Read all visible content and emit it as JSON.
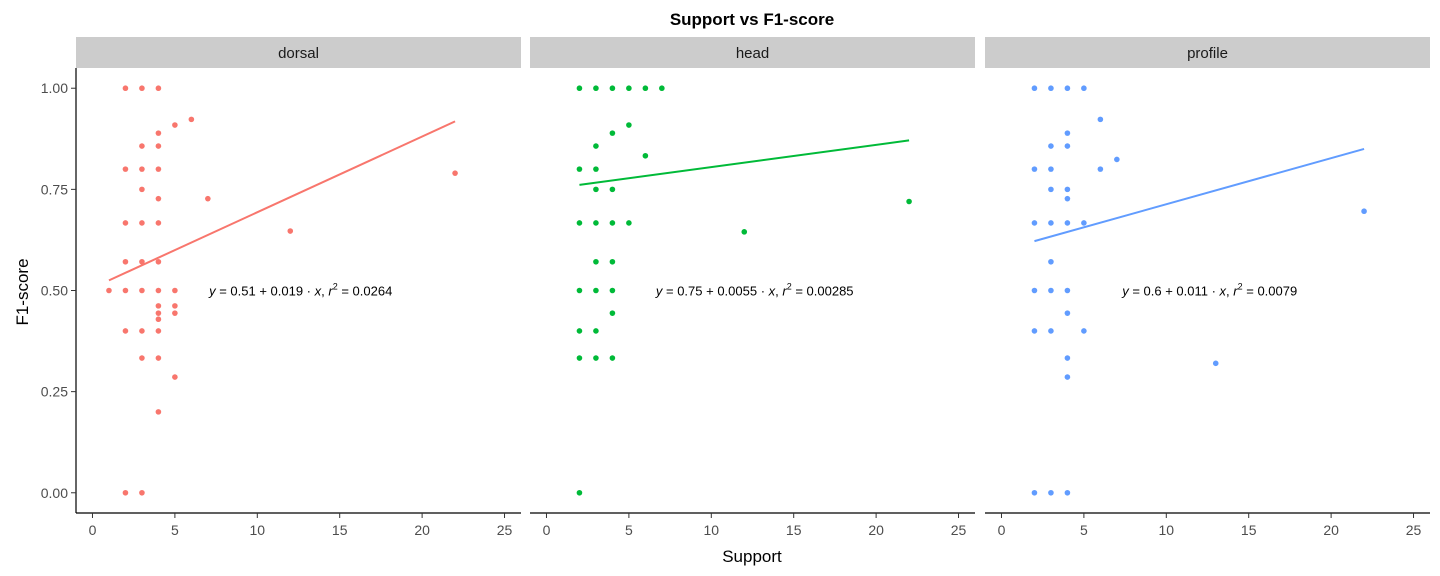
{
  "chart_data": {
    "type": "scatter",
    "title": "Support vs F1-score",
    "xlabel": "Support",
    "ylabel": "F1-score",
    "xlim": [
      -1,
      26
    ],
    "ylim": [
      -0.05,
      1.05
    ],
    "x_ticks": [
      0,
      5,
      10,
      15,
      20,
      25
    ],
    "y_ticks": [
      0.0,
      0.25,
      0.5,
      0.75,
      1.0
    ],
    "x_tick_labels": [
      "0",
      "5",
      "10",
      "15",
      "20",
      "25"
    ],
    "y_tick_labels": [
      "0.00",
      "0.25",
      "0.50",
      "0.75",
      "1.00"
    ],
    "grid": false,
    "panels": [
      {
        "name": "dorsal",
        "color": "#F8766D",
        "equation": {
          "intercept": "0.51",
          "slope": "0.019",
          "r2": "0.0264"
        },
        "fit": {
          "x": [
            1,
            22
          ],
          "y": [
            0.525,
            0.918
          ]
        },
        "points": [
          [
            1,
            0.5
          ],
          [
            2,
            1.0
          ],
          [
            2,
            0.8
          ],
          [
            2,
            0.667
          ],
          [
            2,
            0.571
          ],
          [
            2,
            0.5
          ],
          [
            2,
            0.4
          ],
          [
            2,
            0.0
          ],
          [
            3,
            1.0
          ],
          [
            3,
            0.857
          ],
          [
            3,
            0.8
          ],
          [
            3,
            0.75
          ],
          [
            3,
            0.667
          ],
          [
            3,
            0.571
          ],
          [
            3,
            0.5
          ],
          [
            3,
            0.4
          ],
          [
            3,
            0.333
          ],
          [
            3,
            0.0
          ],
          [
            4,
            1.0
          ],
          [
            4,
            0.889
          ],
          [
            4,
            0.857
          ],
          [
            4,
            0.8
          ],
          [
            4,
            0.727
          ],
          [
            4,
            0.667
          ],
          [
            4,
            0.571
          ],
          [
            4,
            0.5
          ],
          [
            4,
            0.462
          ],
          [
            4,
            0.444
          ],
          [
            4,
            0.429
          ],
          [
            4,
            0.4
          ],
          [
            4,
            0.333
          ],
          [
            4,
            0.2
          ],
          [
            5,
            0.909
          ],
          [
            5,
            0.5
          ],
          [
            5,
            0.462
          ],
          [
            5,
            0.444
          ],
          [
            5,
            0.286
          ],
          [
            6,
            0.923
          ],
          [
            7,
            0.727
          ],
          [
            12,
            0.647
          ],
          [
            22,
            0.79
          ]
        ]
      },
      {
        "name": "head",
        "color": "#00BA38",
        "equation": {
          "intercept": "0.75",
          "slope": "0.0055",
          "r2": "0.00285"
        },
        "fit": {
          "x": [
            2,
            22
          ],
          "y": [
            0.761,
            0.871
          ]
        },
        "points": [
          [
            2,
            1.0
          ],
          [
            2,
            0.8
          ],
          [
            2,
            0.667
          ],
          [
            2,
            0.5
          ],
          [
            2,
            0.4
          ],
          [
            2,
            0.333
          ],
          [
            2,
            0.0
          ],
          [
            3,
            1.0
          ],
          [
            3,
            0.857
          ],
          [
            3,
            0.8
          ],
          [
            3,
            0.75
          ],
          [
            3,
            0.667
          ],
          [
            3,
            0.571
          ],
          [
            3,
            0.5
          ],
          [
            3,
            0.4
          ],
          [
            3,
            0.333
          ],
          [
            4,
            1.0
          ],
          [
            4,
            0.889
          ],
          [
            4,
            0.75
          ],
          [
            4,
            0.667
          ],
          [
            4,
            0.571
          ],
          [
            4,
            0.5
          ],
          [
            4,
            0.444
          ],
          [
            4,
            0.333
          ],
          [
            5,
            1.0
          ],
          [
            5,
            0.909
          ],
          [
            5,
            0.667
          ],
          [
            6,
            1.0
          ],
          [
            6,
            0.833
          ],
          [
            7,
            1.0
          ],
          [
            12,
            0.645
          ],
          [
            22,
            0.72
          ]
        ]
      },
      {
        "name": "profile",
        "color": "#619CFF",
        "equation": {
          "intercept": "0.6",
          "slope": "0.011",
          "r2": "0.0079"
        },
        "fit": {
          "x": [
            2,
            22
          ],
          "y": [
            0.622,
            0.85
          ]
        },
        "points": [
          [
            2,
            1.0
          ],
          [
            2,
            0.8
          ],
          [
            2,
            0.667
          ],
          [
            2,
            0.5
          ],
          [
            2,
            0.4
          ],
          [
            2,
            0.0
          ],
          [
            3,
            1.0
          ],
          [
            3,
            0.857
          ],
          [
            3,
            0.8
          ],
          [
            3,
            0.75
          ],
          [
            3,
            0.667
          ],
          [
            3,
            0.571
          ],
          [
            3,
            0.5
          ],
          [
            3,
            0.4
          ],
          [
            3,
            0.0
          ],
          [
            4,
            1.0
          ],
          [
            4,
            0.889
          ],
          [
            4,
            0.857
          ],
          [
            4,
            0.75
          ],
          [
            4,
            0.727
          ],
          [
            4,
            0.667
          ],
          [
            4,
            0.5
          ],
          [
            4,
            0.444
          ],
          [
            4,
            0.333
          ],
          [
            4,
            0.286
          ],
          [
            4,
            0.0
          ],
          [
            5,
            1.0
          ],
          [
            5,
            0.667
          ],
          [
            5,
            0.4
          ],
          [
            6,
            0.923
          ],
          [
            6,
            0.8
          ],
          [
            7,
            0.824
          ],
          [
            13,
            0.32
          ],
          [
            22,
            0.696
          ]
        ]
      }
    ]
  }
}
